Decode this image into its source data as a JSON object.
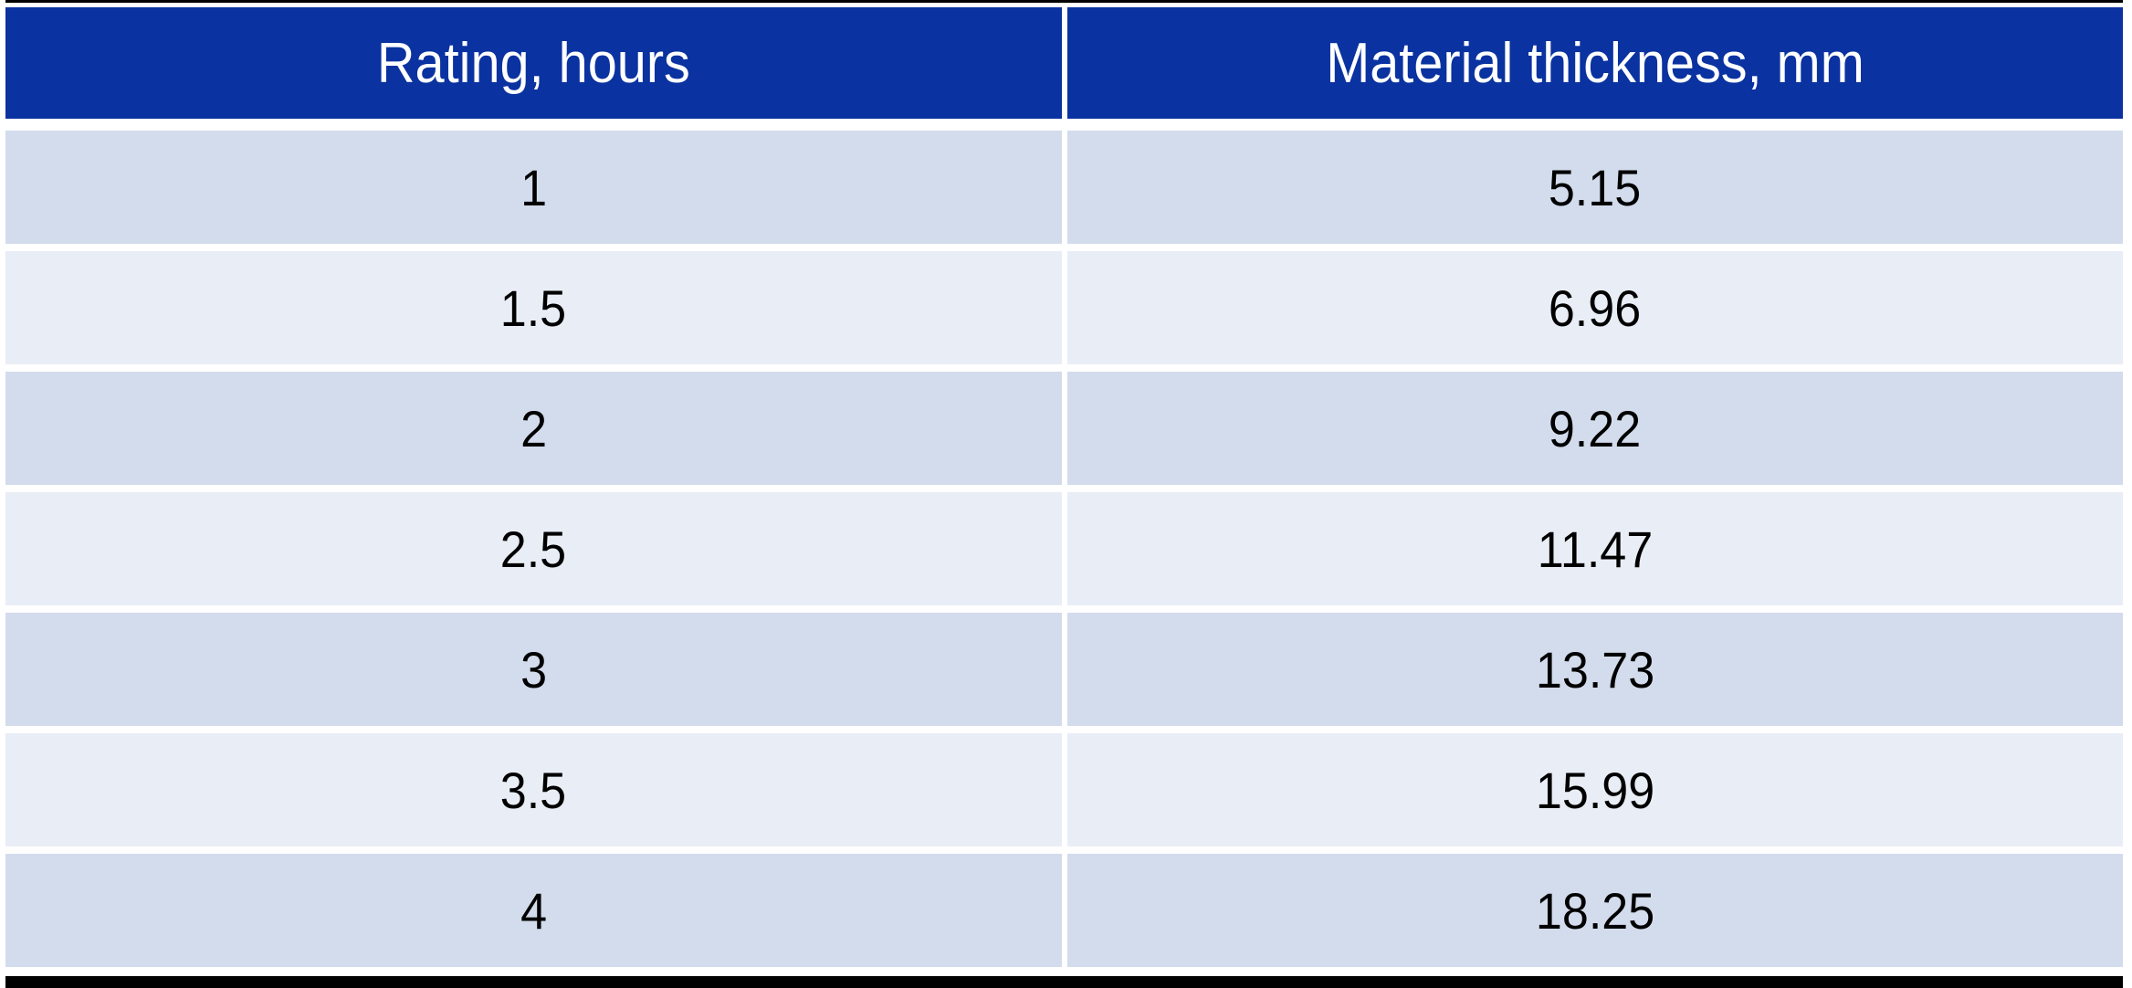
{
  "table": {
    "columns": [
      {
        "label": "Rating, hours"
      },
      {
        "label": "Material thickness, mm"
      }
    ],
    "rows": [
      {
        "rating": "1",
        "thickness": "5.15"
      },
      {
        "rating": "1.5",
        "thickness": "6.96"
      },
      {
        "rating": "2",
        "thickness": "9.22"
      },
      {
        "rating": "2.5",
        "thickness": "11.47"
      },
      {
        "rating": "3",
        "thickness": "13.73"
      },
      {
        "rating": "3.5",
        "thickness": "15.99"
      },
      {
        "rating": "4",
        "thickness": "18.25"
      }
    ]
  },
  "colors": {
    "header_bg": "#0a32a0",
    "header_text": "#ffffff",
    "band_dark": "#d3dcec",
    "band_light": "#e9edf6",
    "rule": "#000000",
    "cell_text": "#000000"
  },
  "chart_data": {
    "type": "table",
    "title": "",
    "columns": [
      "Rating, hours",
      "Material thickness, mm"
    ],
    "categories": [
      1,
      1.5,
      2,
      2.5,
      3,
      3.5,
      4
    ],
    "values": [
      5.15,
      6.96,
      9.22,
      11.47,
      13.73,
      15.99,
      18.25
    ]
  }
}
